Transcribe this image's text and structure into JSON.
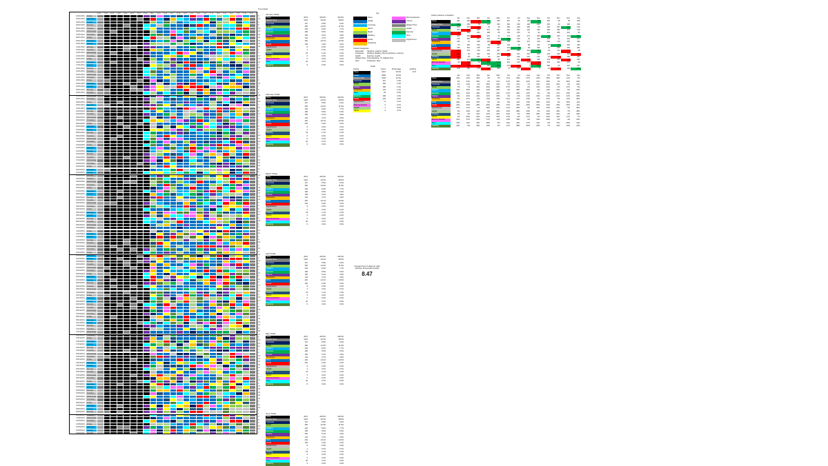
{
  "sheet": {
    "title_cell": "Time tracker",
    "time_headers": [
      "00:00",
      "01:00",
      "02:00",
      "03:00",
      "04:00",
      "05:00",
      "06:00",
      "07:00",
      "08:00",
      "09:00",
      "10:00",
      "11:00",
      "12:00",
      "13:00",
      "14:00",
      "15:00",
      "16:00",
      "17:00",
      "18:00",
      "19:00",
      "20:00",
      "21:00",
      "22:00",
      "23:00"
    ],
    "months": [
      {
        "mm": "01",
        "yyyy": "2016",
        "days": 31
      },
      {
        "mm": "02",
        "yyyy": "2016",
        "days": 29
      },
      {
        "mm": "03",
        "yyyy": "2016",
        "days": 31
      },
      {
        "mm": "04",
        "yyyy": "2016",
        "days": 30
      },
      {
        "mm": "05",
        "yyyy": "2016",
        "days": 20
      }
    ],
    "weekdays": [
      "Sunday",
      "Monday",
      "Tuesday",
      "Wednesday",
      "Thursday",
      "Friday",
      "Saturday"
    ],
    "first_weekday_index": 5
  },
  "categories": [
    {
      "name": "Sleep",
      "color": "#000000"
    },
    {
      "name": "Wasted Time",
      "color": "#808080"
    },
    {
      "name": "Commute",
      "color": "#002060"
    },
    {
      "name": "Meals",
      "color": "#92d050"
    },
    {
      "name": "Hygiene",
      "color": "#00b0f0"
    },
    {
      "name": "Exercise",
      "color": "#00b050"
    },
    {
      "name": "Chores",
      "color": "#7030a0"
    },
    {
      "name": "Productive",
      "color": "#ffc000"
    },
    {
      "name": "Work",
      "color": "#0070c0"
    },
    {
      "name": "Social",
      "color": "#ff0000"
    },
    {
      "name": "Appointment",
      "color": "#c0c0c0"
    },
    {
      "name": "Health",
      "color": "#a9d08e"
    },
    {
      "name": "Reading",
      "color": "#1f4e78"
    },
    {
      "name": "Admin",
      "color": "#ffff00"
    },
    {
      "name": "Morning Routine",
      "color": "#ff66ff"
    },
    {
      "name": "Flow",
      "color": "#00ffff"
    },
    {
      "name": "Learning",
      "color": "#548235"
    }
  ],
  "section_titles": [
    "January Totals",
    "February Totals",
    "March Totals",
    "April Totals",
    "May Totals",
    "June Totals"
  ],
  "section_stats": [
    [
      [
        "3272",
        "105.0%",
        "100.0%"
      ],
      [
        "1232",
        "40.3%",
        "38.6%"
      ],
      [
        "167",
        "5.5%",
        "5.2%"
      ],
      [
        "366",
        "12.0%",
        "11.5%"
      ],
      [
        "246",
        "8.0%",
        "7.7%"
      ],
      [
        "168",
        "5.5%",
        "5.3%"
      ],
      [
        "156",
        "5.1%",
        "4.9%"
      ],
      [
        "143",
        "4.7%",
        "4.5%"
      ],
      [
        "402",
        "13.1%",
        "12.6%"
      ],
      [
        "102",
        "3.3%",
        "3.2%"
      ],
      [
        "8",
        "0.3%",
        "0.3%"
      ],
      [
        "4",
        "0.1%",
        "0.1%"
      ],
      [
        "33",
        "1.1%",
        "1.0%"
      ],
      [
        "6",
        "0.2%",
        "0.2%"
      ],
      [
        "6",
        "0.2%",
        "0.2%"
      ],
      [
        "20",
        "0.7%",
        "0.6%"
      ],
      [
        "9",
        "0.3%",
        "0.3%"
      ]
    ]
  ],
  "legend": [
    {
      "name": "Sleep",
      "color": "#000000"
    },
    {
      "name": "Awake",
      "color": "#0070c0"
    },
    {
      "name": "Commute",
      "color": "#00b0f0"
    },
    {
      "name": "Admin",
      "color": "#ffff00"
    },
    {
      "name": "Meals",
      "color": "#92d050"
    },
    {
      "name": "Reading",
      "color": "#002060"
    },
    {
      "name": "Social",
      "color": "#ff0000"
    },
    {
      "name": "Productive",
      "color": "#ffc000"
    },
    {
      "name": "Morning Routine",
      "color": "#ff66ff"
    },
    {
      "name": "Chores",
      "color": "#7030a0"
    },
    {
      "name": "Wasted Time",
      "color": "#808080"
    },
    {
      "name": "Health",
      "color": "#a9d08e"
    },
    {
      "name": "Exercise",
      "color": "#00b050"
    },
    {
      "name": "Flow",
      "color": "#00ffff"
    },
    {
      "name": "Appointment",
      "color": "#c0c0c0"
    }
  ],
  "legend_title": "Key",
  "category_groups_title": "Context Categories",
  "category_groups": [
    [
      "Essentials",
      "Sleeping, Hygiene, Meals"
    ],
    [
      "Productive",
      "Working, Reading, Morning Routine, Learning"
    ],
    [
      "Health",
      "Exercise, Health"
    ],
    [
      "Wasted Time",
      "Procrastinating, TV, Wasted Time"
    ],
    [
      "Flow",
      "Productive, Flow"
    ]
  ],
  "totals": {
    "title": "Totals",
    "headers": [
      "Activity",
      "Hours",
      "Percentage",
      "Hrs/Day"
    ],
    "rows": [
      [
        "Sleep",
        "3272",
        "30.0%",
        "8.47"
      ],
      [
        "Awake",
        "2050",
        "19.0%",
        ""
      ],
      [
        "Wasted Time",
        "1232",
        "11.3%",
        ""
      ],
      [
        "Commute",
        "167",
        "1.5%",
        ""
      ],
      [
        "Meals",
        "366",
        "3.4%",
        ""
      ],
      [
        "Chores",
        "156",
        "1.4%",
        ""
      ],
      [
        "Productive",
        "143",
        "1.3%",
        ""
      ],
      [
        "Flow",
        "20",
        "0.2%",
        ""
      ],
      [
        "Exercise",
        "168",
        "1.5%",
        ""
      ],
      [
        "Social",
        "102",
        "0.9%",
        ""
      ],
      [
        "Appointment",
        "8",
        "0.1%",
        ""
      ],
      [
        "Morning Routine",
        "6",
        "0.1%",
        ""
      ],
      [
        "Health",
        "4",
        "0.0%",
        ""
      ],
      [
        "Admin",
        "6",
        "0.1%",
        ""
      ]
    ]
  },
  "heatmap_title": "Activity variance vs baseline",
  "heatmap_headers": [
    "Jan",
    "Feb",
    "Mar",
    "Apr",
    "May",
    "Jun",
    "Jul",
    "Aug",
    "Sep",
    "Oct",
    "Nov",
    "Dec",
    "Avg"
  ],
  "average_label": "Average hours of sleep per night",
  "average_sublabel": "(all days, all recorded months)",
  "average_value": "8.47"
}
